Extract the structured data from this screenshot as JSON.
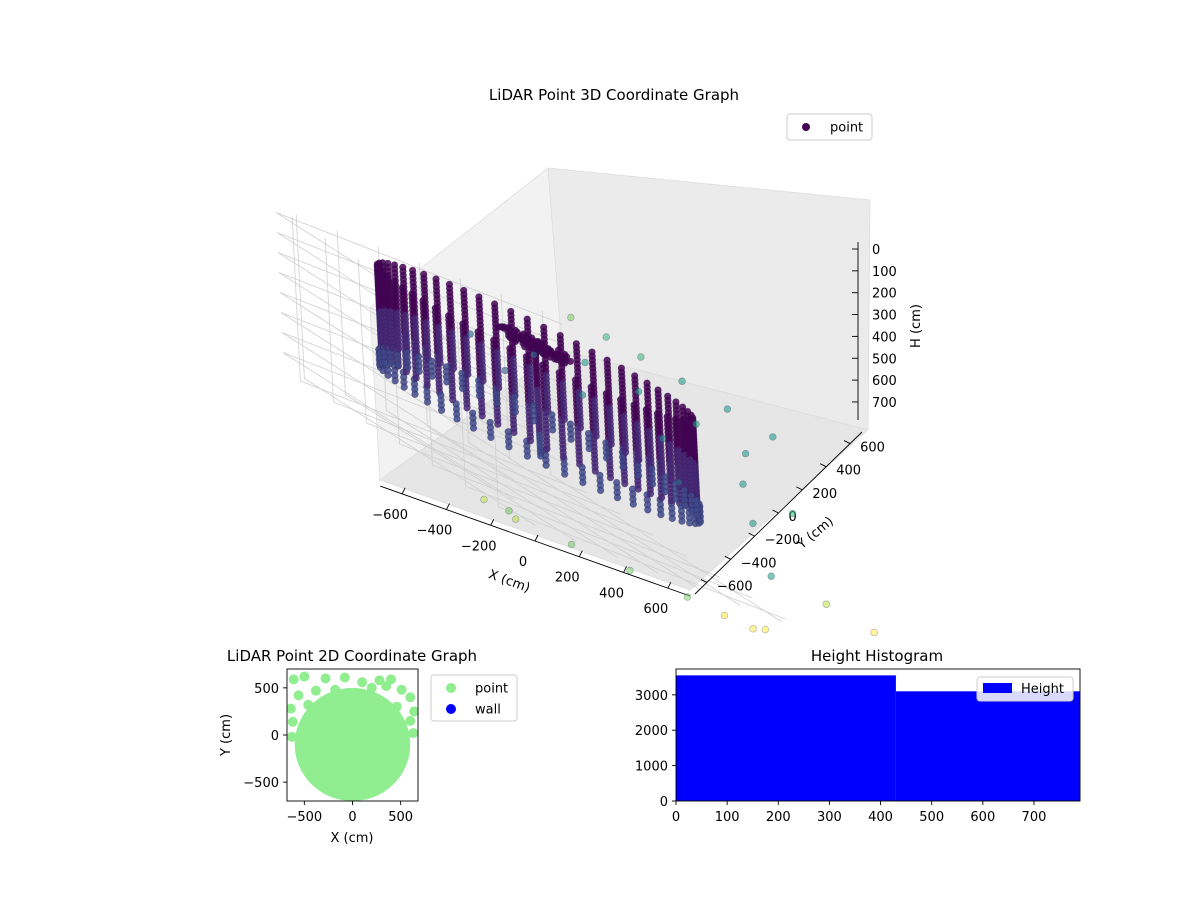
{
  "chart_data": [
    {
      "type": "scatter",
      "projection": "3d",
      "title": "LiDAR Point 3D Coordinate Graph",
      "xlabel": "X (cm)",
      "ylabel": "Y (cm)",
      "zlabel": "H (cm)",
      "xticks": [
        -600,
        -400,
        -200,
        0,
        200,
        400,
        600
      ],
      "yticks": [
        -600,
        -400,
        -200,
        0,
        200,
        400,
        600
      ],
      "zticks": [
        0,
        100,
        200,
        300,
        400,
        500,
        600,
        700
      ],
      "xlim": [
        -700,
        700
      ],
      "ylim": [
        -700,
        700
      ],
      "zlim": [
        0,
        790
      ],
      "z_axis_inverted": true,
      "colormap": "viridis",
      "grid": true,
      "legend": {
        "placement": "top-right",
        "entries": [
          "point"
        ]
      },
      "series": [
        {
          "name": "point",
          "color": "#440154",
          "structures": [
            {
              "kind": "cylinder-wall",
              "center": [
                0,
                0
              ],
              "radius": 600,
              "h_range": [
                0,
                420
              ],
              "h_step": 20,
              "columns": 60
            },
            {
              "kind": "lower-ring",
              "center": [
                0,
                0
              ],
              "radius": 610,
              "h_range": [
                430,
                520
              ],
              "h_step": 25,
              "columns": 54
            },
            {
              "kind": "vertical-pole",
              "center": [
                0,
                0
              ],
              "h_range": [
                0,
                580
              ]
            },
            {
              "kind": "ceiling-cluster",
              "center": [
                0,
                0
              ],
              "radius": 140,
              "h": 0
            }
          ],
          "outliers": [
            {
              "x": 900,
              "y": 900,
              "h": -10
            },
            {
              "x": 960,
              "y": 760,
              "h": -10
            },
            {
              "x": 1000,
              "y": 600,
              "h": -10
            },
            {
              "x": 1040,
              "y": 400,
              "h": -10
            },
            {
              "x": 1060,
              "y": 150,
              "h": -10
            },
            {
              "x": 1080,
              "y": -100,
              "h": -10
            },
            {
              "x": 800,
              "y": 700,
              "h": 150
            },
            {
              "x": 900,
              "y": 500,
              "h": 150
            },
            {
              "x": 980,
              "y": 250,
              "h": 150
            },
            {
              "x": 1020,
              "y": 0,
              "h": 150
            },
            {
              "x": 700,
              "y": 600,
              "h": 300
            },
            {
              "x": 850,
              "y": 300,
              "h": 300
            },
            {
              "x": 960,
              "y": -50,
              "h": 300
            },
            {
              "x": 1000,
              "y": -300,
              "h": 300
            },
            {
              "x": 760,
              "y": 100,
              "h": 450
            },
            {
              "x": 880,
              "y": -200,
              "h": 450
            },
            {
              "x": 400,
              "y": 700,
              "h": 350
            },
            {
              "x": 300,
              "y": 780,
              "h": 250
            },
            {
              "x": 500,
              "y": 640,
              "h": 200
            },
            {
              "x": 640,
              "y": -600,
              "h": 600
            },
            {
              "x": 780,
              "y": -760,
              "h": 600
            },
            {
              "x": 900,
              "y": -900,
              "h": 620
            },
            {
              "x": -680,
              "y": -640,
              "h": 780
            },
            {
              "x": -760,
              "y": -780,
              "h": 780
            },
            {
              "x": -520,
              "y": -820,
              "h": 790
            },
            {
              "x": -300,
              "y": -900,
              "h": 790
            },
            {
              "x": -100,
              "y": -1000,
              "h": 790
            },
            {
              "x": 0,
              "y": -1100,
              "h": 790
            },
            {
              "x": 100,
              "y": -1150,
              "h": 790
            },
            {
              "x": 200,
              "y": -1100,
              "h": 780
            },
            {
              "x": -850,
              "y": -700,
              "h": 760
            }
          ]
        }
      ]
    },
    {
      "type": "scatter",
      "title": "LiDAR Point 2D Coordinate Graph",
      "xlabel": "X (cm)",
      "ylabel": "Y (cm)",
      "xticks": [
        -500,
        0,
        500
      ],
      "yticks": [
        -500,
        0,
        500
      ],
      "xlim": [
        -680,
        680
      ],
      "ylim": [
        -700,
        700
      ],
      "legend": {
        "placement": "outside-right",
        "entries": [
          "point",
          "wall"
        ]
      },
      "series": [
        {
          "name": "point",
          "color": "#90ee90",
          "regions": [
            {
              "kind": "filled-disk",
              "center": [
                0,
                -100
              ],
              "radius": 600
            },
            {
              "kind": "filled-disk",
              "center": [
                0,
                0
              ],
              "radius": 400
            }
          ],
          "scattered": [
            {
              "x": -610,
              "y": 590
            },
            {
              "x": -500,
              "y": 620
            },
            {
              "x": -280,
              "y": 600
            },
            {
              "x": -80,
              "y": 610
            },
            {
              "x": 100,
              "y": 560
            },
            {
              "x": 280,
              "y": 580
            },
            {
              "x": 400,
              "y": 590
            },
            {
              "x": 510,
              "y": 480
            },
            {
              "x": 600,
              "y": 400
            },
            {
              "x": -560,
              "y": 420
            },
            {
              "x": -380,
              "y": 470
            },
            {
              "x": -180,
              "y": 480
            },
            {
              "x": 200,
              "y": 500
            },
            {
              "x": 350,
              "y": 520
            },
            {
              "x": -460,
              "y": 320
            },
            {
              "x": 460,
              "y": 300
            },
            {
              "x": -620,
              "y": 140
            },
            {
              "x": 600,
              "y": 150
            },
            {
              "x": -630,
              "y": -20
            },
            {
              "x": 630,
              "y": 20
            },
            {
              "x": 640,
              "y": 250
            },
            {
              "x": -640,
              "y": 280
            }
          ]
        },
        {
          "name": "wall",
          "color": "#0000ff"
        }
      ]
    },
    {
      "type": "bar",
      "subtype": "histogram",
      "title": "Height Histogram",
      "xticks": [
        0,
        100,
        200,
        300,
        400,
        500,
        600,
        700
      ],
      "yticks": [
        0,
        1000,
        2000,
        3000
      ],
      "xlim": [
        0,
        790
      ],
      "ylim": [
        0,
        3730
      ],
      "color": "#0000ff",
      "legend": {
        "placement": "top-right",
        "entries": [
          "Height"
        ]
      },
      "series": [
        {
          "name": "Height",
          "bins": [
            {
              "start": 0,
              "end": 430,
              "count": 3550
            },
            {
              "start": 430,
              "end": 790,
              "count": 3100
            }
          ]
        }
      ]
    }
  ]
}
